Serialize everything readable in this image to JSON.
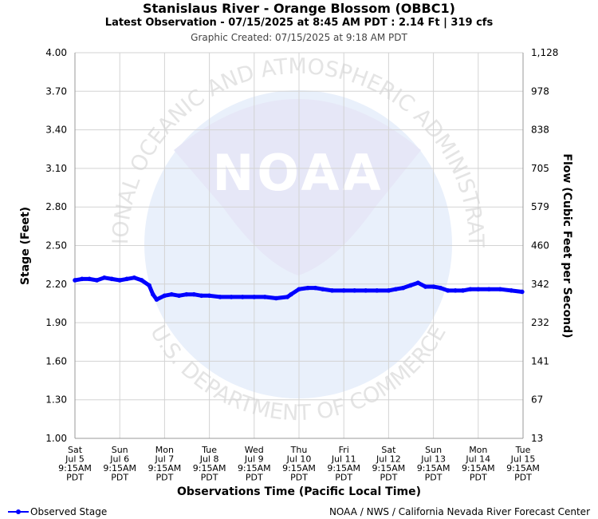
{
  "header": {
    "title": "Stanislaus River - Orange Blossom (OBBC1)",
    "subtitle": "Latest Observation - 07/15/2025 at 8:45 AM PDT : 2.14 Ft | 319 cfs",
    "created": "Graphic Created: 07/15/2025 at 9:18 AM PDT"
  },
  "footer": {
    "legend_label": "Observed Stage",
    "credit": "NOAA / NWS / California Nevada River Forecast Center"
  },
  "watermark": {
    "arc_top": "NATIONAL OCEANIC AND ATMOSPHERIC ADMINISTRATION",
    "arc_bottom": "U.S. DEPARTMENT OF COMMERCE",
    "logo_text": "NOAA"
  },
  "chart_data": {
    "type": "line",
    "title": "Stanislaus River - Orange Blossom (OBBC1)",
    "xlabel": "Observations Time (Pacific Local Time)",
    "ylabel": "Stage (Feet)",
    "y2label": "Flow (Cubic Feet per Second)",
    "ylim": [
      1.0,
      4.0
    ],
    "yticks": [
      "1.00",
      "1.30",
      "1.60",
      "1.90",
      "2.20",
      "2.50",
      "2.80",
      "3.10",
      "3.40",
      "3.70",
      "4.00"
    ],
    "y2ticks": [
      "13",
      "67",
      "141",
      "232",
      "342",
      "460",
      "579",
      "705",
      "838",
      "978",
      "1,128"
    ],
    "xticks": [
      [
        "Sat",
        "Jul 5",
        "9:15AM",
        "PDT"
      ],
      [
        "Sun",
        "Jul 6",
        "9:15AM",
        "PDT"
      ],
      [
        "Mon",
        "Jul 7",
        "9:15AM",
        "PDT"
      ],
      [
        "Tue",
        "Jul 8",
        "9:15AM",
        "PDT"
      ],
      [
        "Wed",
        "Jul 9",
        "9:15AM",
        "PDT"
      ],
      [
        "Thu",
        "Jul 10",
        "9:15AM",
        "PDT"
      ],
      [
        "Fri",
        "Jul 11",
        "9:15AM",
        "PDT"
      ],
      [
        "Sat",
        "Jul 12",
        "9:15AM",
        "PDT"
      ],
      [
        "Sun",
        "Jul 13",
        "9:15AM",
        "PDT"
      ],
      [
        "Mon",
        "Jul 14",
        "9:15AM",
        "PDT"
      ],
      [
        "Tue",
        "Jul 15",
        "9:15AM",
        "PDT"
      ]
    ],
    "grid": true,
    "legend_position": "bottom-left",
    "colors": {
      "series": "#0000ff",
      "grid": "#d3d3d3",
      "watermark": "#e8eaf8"
    },
    "series": [
      {
        "name": "Observed Stage",
        "x": [
          "07/05 09:15",
          "07/05 13:00",
          "07/05 17:00",
          "07/05 21:00",
          "07/06 01:00",
          "07/06 05:00",
          "07/06 09:15",
          "07/06 13:00",
          "07/06 17:00",
          "07/06 21:00",
          "07/07 01:00",
          "07/07 03:00",
          "07/07 05:00",
          "07/07 09:15",
          "07/07 13:00",
          "07/07 17:00",
          "07/07 21:00",
          "07/08 01:00",
          "07/08 05:00",
          "07/08 09:15",
          "07/08 15:00",
          "07/08 21:00",
          "07/09 03:00",
          "07/09 09:15",
          "07/09 15:00",
          "07/09 21:00",
          "07/10 03:00",
          "07/10 05:00",
          "07/10 09:15",
          "07/10 14:00",
          "07/10 18:00",
          "07/10 22:00",
          "07/11 03:00",
          "07/11 09:15",
          "07/11 15:00",
          "07/11 21:00",
          "07/12 03:00",
          "07/12 09:15",
          "07/12 13:00",
          "07/12 17:00",
          "07/12 21:00",
          "07/13 01:00",
          "07/13 05:00",
          "07/13 09:15",
          "07/13 13:00",
          "07/13 17:00",
          "07/13 21:00",
          "07/14 01:00",
          "07/14 05:00",
          "07/14 09:15",
          "07/14 15:00",
          "07/14 21:00",
          "07/15 03:00",
          "07/15 08:45"
        ],
        "values": [
          2.23,
          2.24,
          2.24,
          2.23,
          2.25,
          2.24,
          2.23,
          2.24,
          2.25,
          2.23,
          2.19,
          2.12,
          2.08,
          2.11,
          2.12,
          2.11,
          2.12,
          2.12,
          2.11,
          2.11,
          2.1,
          2.1,
          2.1,
          2.1,
          2.1,
          2.09,
          2.1,
          2.12,
          2.16,
          2.17,
          2.17,
          2.16,
          2.15,
          2.15,
          2.15,
          2.15,
          2.15,
          2.15,
          2.16,
          2.17,
          2.19,
          2.21,
          2.18,
          2.18,
          2.17,
          2.15,
          2.15,
          2.15,
          2.16,
          2.16,
          2.16,
          2.16,
          2.15,
          2.14
        ]
      }
    ]
  }
}
